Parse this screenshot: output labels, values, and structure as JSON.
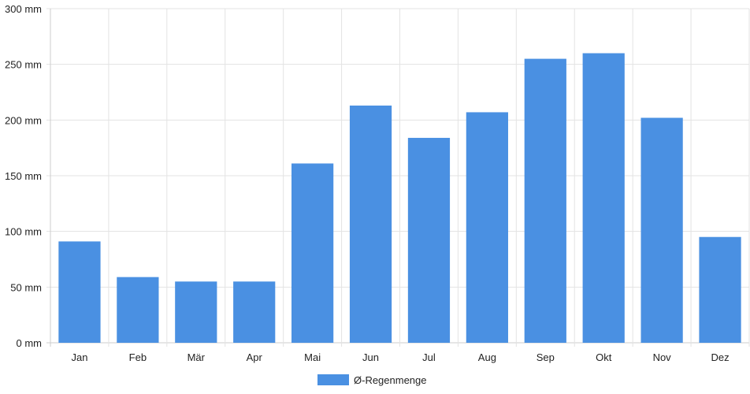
{
  "chart_data": {
    "type": "bar",
    "categories": [
      "Jan",
      "Feb",
      "Mär",
      "Apr",
      "Mai",
      "Jun",
      "Jul",
      "Aug",
      "Sep",
      "Okt",
      "Nov",
      "Dez"
    ],
    "series": [
      {
        "name": "Ø-Regenmenge",
        "values": [
          91,
          59,
          55,
          55,
          161,
          213,
          184,
          207,
          255,
          260,
          202,
          95
        ]
      }
    ],
    "y_unit": "mm",
    "y_ticks": [
      "0 mm",
      "50 mm",
      "100 mm",
      "150 mm",
      "200 mm",
      "250 mm",
      "300 mm"
    ],
    "ylim": [
      0,
      300
    ],
    "grid": true,
    "legend_position": "bottom",
    "colors": {
      "bar": "#4a90e2",
      "grid": "#e3e3e3",
      "axis": "#cccccc"
    }
  }
}
